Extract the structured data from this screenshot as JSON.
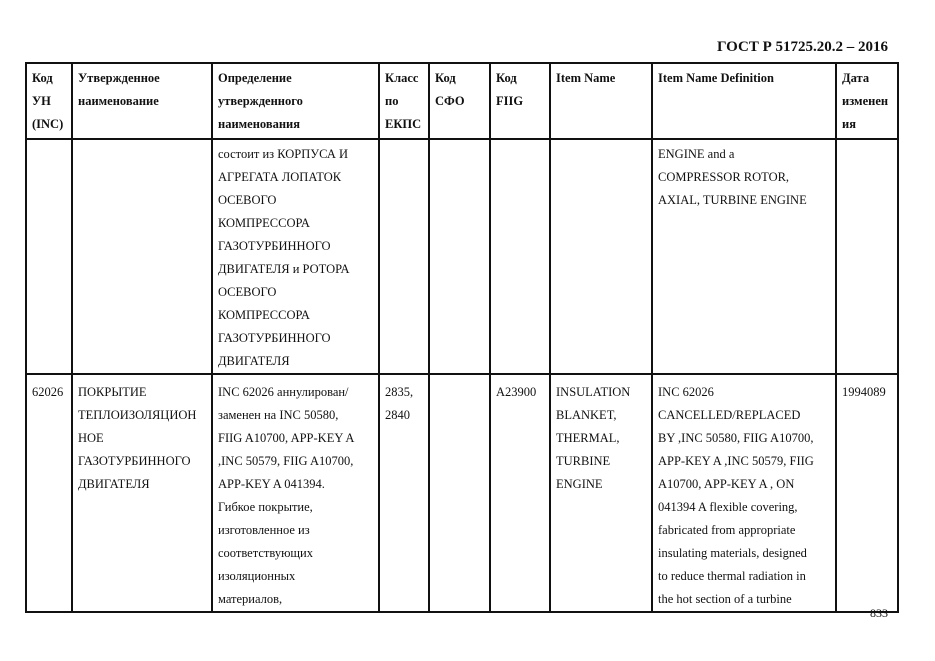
{
  "document": {
    "title": "ГОСТ Р 51725.20.2 – 2016",
    "page_number": "833"
  },
  "table": {
    "headers": [
      [
        "Код",
        "УН",
        "(INC)"
      ],
      [
        "Утвержденное",
        "наименование"
      ],
      [
        "Определение",
        "утвержденного",
        "наименования"
      ],
      [
        "Класс",
        "по",
        "ЕКПС"
      ],
      [
        "Код",
        "СФО"
      ],
      [
        "Код",
        "FIIG"
      ],
      [
        "Item Name"
      ],
      [
        "Item Name Definition"
      ],
      [
        "Дата",
        "изменен",
        "ия"
      ]
    ],
    "rows": [
      [
        [],
        [],
        [
          "состоит из КОРПУСА И",
          "АГРЕГАТА ЛОПАТОК",
          "ОСЕВОГО",
          "КОМПРЕССОРА",
          "ГАЗОТУРБИННОГО",
          "ДВИГАТЕЛЯ и РОТОРА",
          "ОСЕВОГО",
          "КОМПРЕССОРА",
          "ГАЗОТУРБИННОГО",
          "ДВИГАТЕЛЯ"
        ],
        [],
        [],
        [],
        [],
        [
          "ENGINE and a",
          "COMPRESSOR ROTOR,",
          "AXIAL, TURBINE ENGINE"
        ],
        []
      ],
      [
        [
          "62026"
        ],
        [
          "ПОКРЫТИЕ",
          "ТЕПЛОИЗОЛЯЦИОН",
          "НОЕ",
          "ГАЗОТУРБИННОГО",
          "ДВИГАТЕЛЯ"
        ],
        [
          "INC 62026 аннулирован/",
          "заменен на INC 50580,",
          "FIIG A10700, APP-KEY A",
          ",INC 50579, FIIG A10700,",
          "APP-KEY A 041394.",
          "Гибкое покрытие,",
          "изготовленное из",
          "соответствующих",
          "изоляционных",
          "материалов,"
        ],
        [
          "2835,",
          "2840"
        ],
        [],
        [
          "A23900"
        ],
        [
          "INSULATION",
          "BLANKET,",
          "THERMAL,",
          "TURBINE",
          "ENGINE"
        ],
        [
          "INC 62026",
          "CANCELLED/REPLACED",
          "BY ,INC 50580, FIIG A10700,",
          "APP-KEY A  ,INC 50579, FIIG",
          "A10700, APP-KEY A  , ON",
          "041394 A flexible covering,",
          "fabricated from appropriate",
          "insulating materials, designed",
          "to reduce thermal radiation in",
          "the hot section of a turbine"
        ],
        [
          "1994089"
        ]
      ]
    ]
  }
}
